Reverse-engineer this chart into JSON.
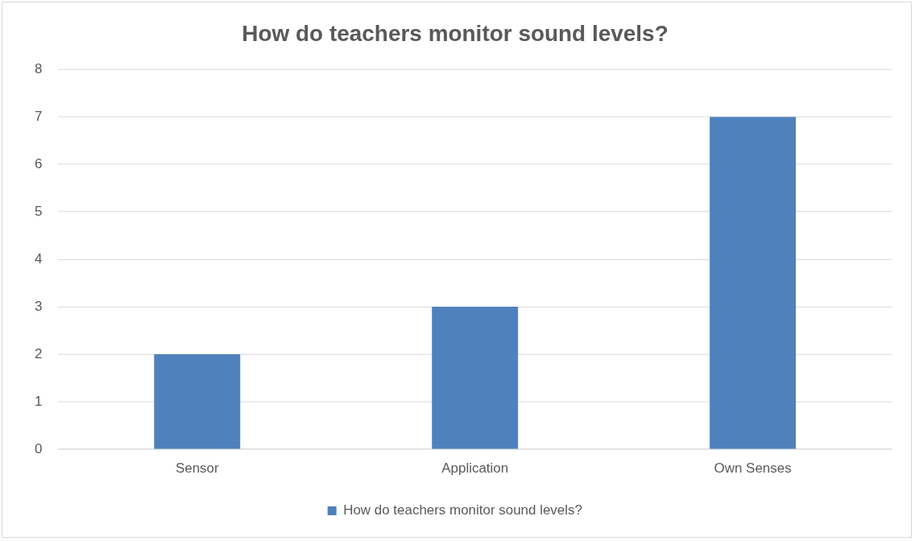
{
  "chart_data": {
    "type": "bar",
    "title": "How do teachers monitor sound levels?",
    "categories": [
      "Sensor",
      "Application",
      "Own Senses"
    ],
    "series": [
      {
        "name": "How do teachers monitor sound levels?",
        "color": "#4f81bd",
        "values": [
          2,
          3,
          7
        ]
      }
    ],
    "ylim": [
      0,
      8
    ],
    "yticks": [
      0,
      1,
      2,
      3,
      4,
      5,
      6,
      7,
      8
    ],
    "grid": "y",
    "legend": "bottom"
  }
}
